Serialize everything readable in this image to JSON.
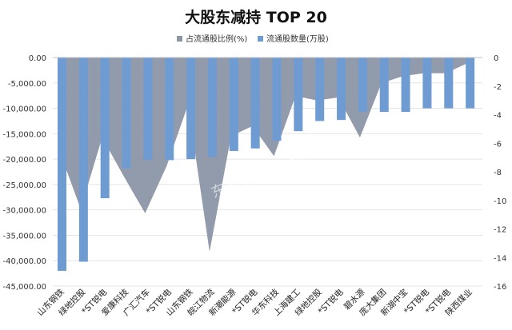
{
  "chart_data": {
    "type": "bar",
    "title": "大股东减持 TOP 20",
    "watermark": "东方财富Choice数据",
    "categories": [
      "山东钢铁",
      "绿地控股",
      "*ST锐电",
      "爱康科技",
      "广汇汽车",
      "*ST锐电",
      "山东钢铁",
      "皖江物流",
      "新潮能源",
      "*ST锐电",
      "华东科技",
      "上海建工",
      "绿地控股",
      "*ST锐电",
      "碧水源",
      "庞大集团",
      "新湖中宝",
      "*ST锐电",
      "*ST锐电",
      "陕西煤业"
    ],
    "series": [
      {
        "name": "流通股数量(万股)",
        "type": "bar",
        "axis": "left",
        "color": "#6f9bd3",
        "values": [
          -42000,
          -40200,
          -27700,
          -21800,
          -20200,
          -20200,
          -20000,
          -19600,
          -18400,
          -17900,
          -16400,
          -14500,
          -12500,
          -12300,
          -10700,
          -10700,
          -10700,
          -10000,
          -10000,
          -10000
        ]
      },
      {
        "name": "占流通股比例(%)",
        "type": "area",
        "axis": "right",
        "color": "#8c96a6",
        "values": [
          -6.5,
          -10.6,
          -5.6,
          -8.3,
          -10.9,
          -7.6,
          -3.3,
          -13.6,
          -5.5,
          -4.8,
          -6.9,
          -2.7,
          -3.0,
          -2.8,
          -5.6,
          -1.8,
          -1.3,
          -1.1,
          -1.1,
          -0.4
        ]
      }
    ],
    "y_left": {
      "min": -45000,
      "max": 0,
      "step": 5000,
      "tick_labels": [
        "0.00",
        "-5,000.00",
        "-10,000.00",
        "-15,000.00",
        "-20,000.00",
        "-25,000.00",
        "-30,000.00",
        "-35,000.00",
        "-40,000.00",
        "-45,000.00"
      ]
    },
    "y_right": {
      "min": -16,
      "max": 0,
      "step": 2,
      "tick_labels": [
        "0",
        "-2",
        "-4",
        "-6",
        "-8",
        "-10",
        "-12",
        "-14",
        "-16"
      ]
    },
    "legend": {
      "position": "top",
      "order": [
        "占流通股比例(%)",
        "流通股数量(万股)"
      ]
    },
    "grid": true
  }
}
